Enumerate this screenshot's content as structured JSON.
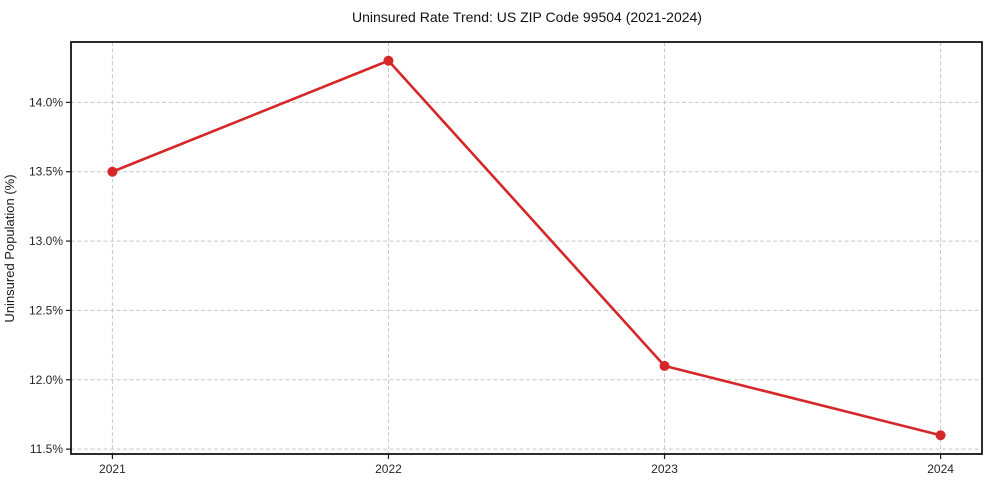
{
  "chart_data": {
    "type": "line",
    "title": "Uninsured Rate Trend: US ZIP Code 99504 (2021-2024)",
    "xlabel": "",
    "ylabel": "Uninsured Population (%)",
    "x": [
      2021,
      2022,
      2023,
      2024
    ],
    "x_tick_labels": [
      "2021",
      "2022",
      "2023",
      "2024"
    ],
    "series": [
      {
        "name": "Uninsured rate",
        "values": [
          13.5,
          14.3,
          12.1,
          11.6
        ]
      }
    ],
    "y_ticks": [
      11.5,
      12.0,
      12.5,
      13.0,
      13.5,
      14.0
    ],
    "y_tick_labels": [
      "11.5%",
      "12.0%",
      "12.5%",
      "13.0%",
      "13.5%",
      "14.0%"
    ],
    "xlim": [
      2020.85,
      2024.15
    ],
    "ylim": [
      11.465,
      14.435
    ],
    "grid": true,
    "grid_style": "dashed",
    "legend_position": "none",
    "line_color": "#d62728",
    "marker": "circle"
  }
}
